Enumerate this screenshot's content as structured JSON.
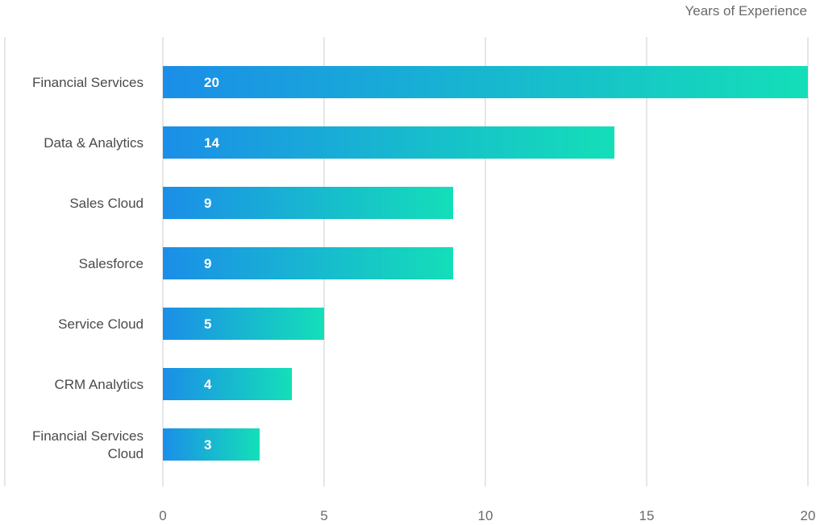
{
  "chart_data": {
    "type": "bar",
    "orientation": "horizontal",
    "title": "",
    "xlabel": "Years of Experience",
    "ylabel": "",
    "categories": [
      "Financial Services",
      "Data & Analytics",
      "Sales Cloud",
      "Salesforce",
      "Service Cloud",
      "CRM Analytics",
      "Financial Services Cloud"
    ],
    "values": [
      20,
      14,
      9,
      9,
      5,
      4,
      3
    ],
    "xlim": [
      0,
      20
    ],
    "xticks": [
      0,
      5,
      10,
      15,
      20
    ],
    "xtick_labels": [
      "0",
      "5",
      "10",
      "15",
      "20"
    ],
    "grid": "vertical",
    "legend": "none",
    "colors": {
      "gradient_start": "#1b8ee8",
      "gradient_end": "#14dfb8",
      "grid": "#cccccc",
      "value_text": "#ffffff"
    }
  }
}
